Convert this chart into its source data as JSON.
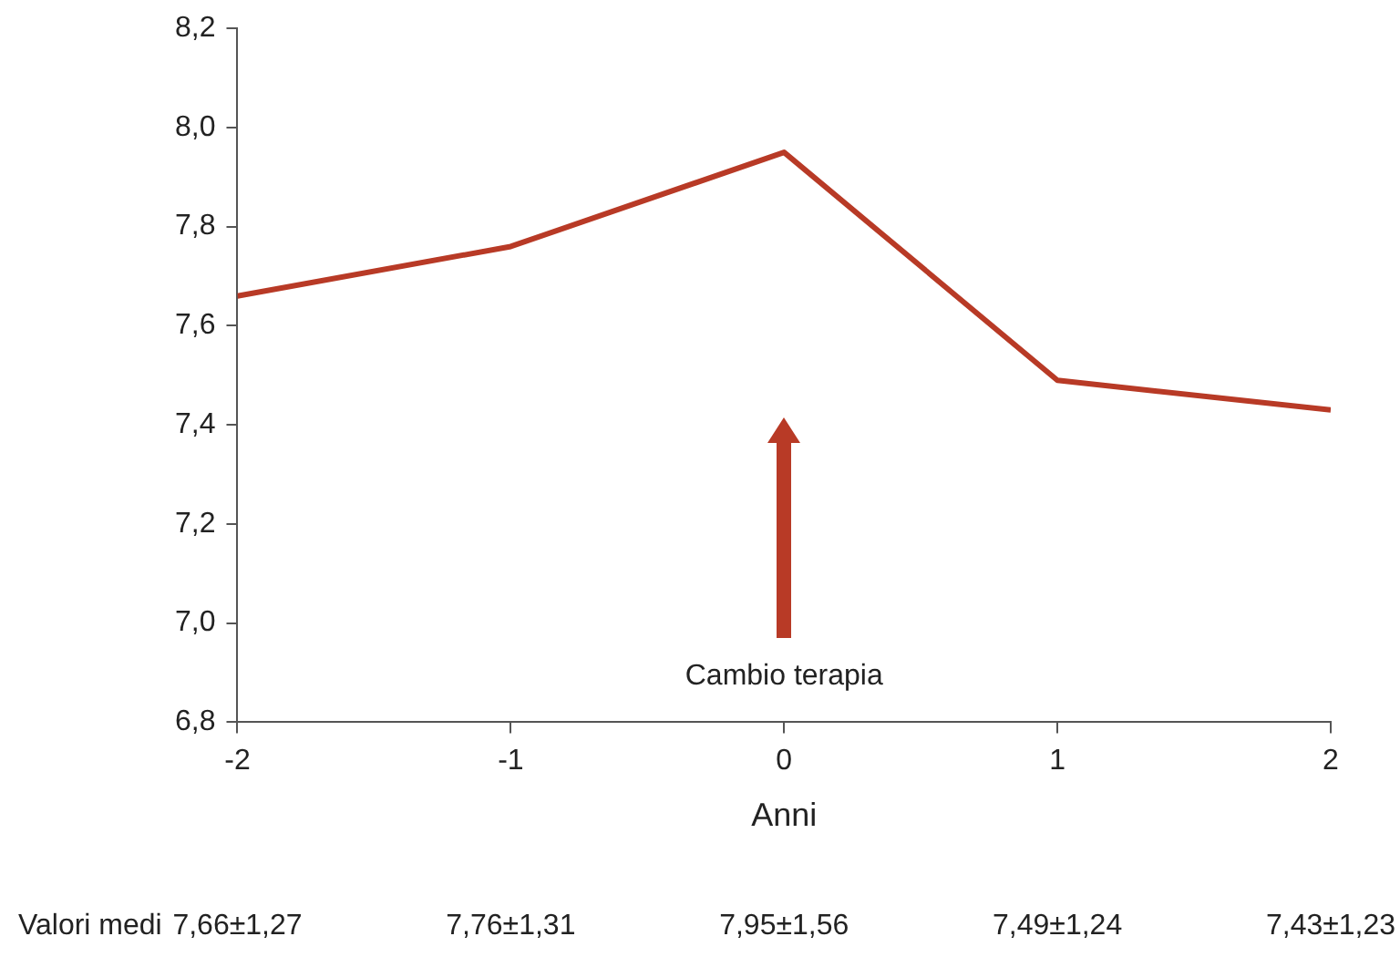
{
  "chart_data": {
    "type": "line",
    "xlabel": "Anni",
    "x": [
      -2,
      -1,
      0,
      1,
      2
    ],
    "series": [
      {
        "color": "#b83a26",
        "values": [
          7.66,
          7.76,
          7.95,
          7.49,
          7.43
        ]
      }
    ],
    "xlim": [
      -2,
      2
    ],
    "xticks": [
      -2,
      -1,
      0,
      1,
      2
    ],
    "ylim": [
      6.8,
      8.2
    ],
    "yticks": [
      {
        "value": 6.8,
        "label": "6,8"
      },
      {
        "value": 7.0,
        "label": "7,0"
      },
      {
        "value": 7.2,
        "label": "7,2"
      },
      {
        "value": 7.4,
        "label": "7,4"
      },
      {
        "value": 7.6,
        "label": "7,6"
      },
      {
        "value": 7.8,
        "label": "7,8"
      },
      {
        "value": 8.0,
        "label": "8,0"
      },
      {
        "value": 8.2,
        "label": "8,2"
      }
    ],
    "grid": false,
    "legend": false,
    "marker": "none",
    "line_style": "solid",
    "annotations": [
      "Cambio terapia",
      "Valori medi",
      "7,66±1,27",
      "7,76±1,31",
      "7,95±1,56",
      "7,49±1,24",
      "7,43±1,23"
    ]
  }
}
